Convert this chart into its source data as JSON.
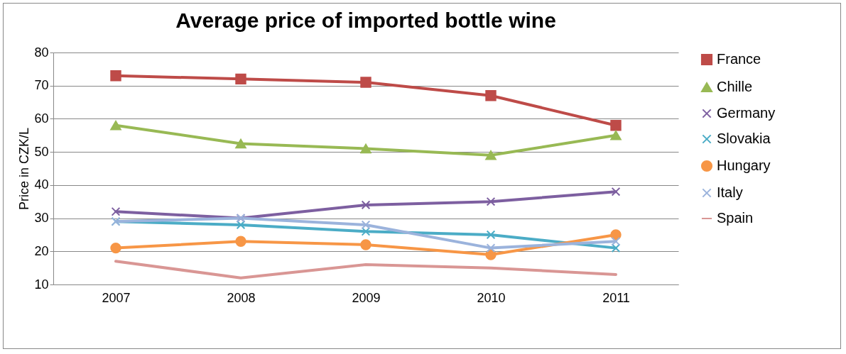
{
  "chart_data": {
    "type": "line",
    "title": "Average price of imported bottle wine",
    "ylabel": "Price in CZK/L",
    "categories": [
      "2007",
      "2008",
      "2009",
      "2010",
      "2011"
    ],
    "ylim": [
      10,
      80
    ],
    "yticks": [
      10,
      20,
      30,
      40,
      50,
      60,
      70,
      80
    ],
    "grid": "y",
    "legend": "right",
    "series": [
      {
        "name": "France",
        "color": "#be4b48",
        "marker": "square",
        "values": [
          73,
          72,
          71,
          67,
          58
        ]
      },
      {
        "name": "Chille",
        "color": "#98b954",
        "marker": "triangle",
        "values": [
          58,
          52.5,
          51,
          49,
          55
        ]
      },
      {
        "name": "Germany",
        "color": "#7d5fa0",
        "marker": "cross",
        "values": [
          32,
          30,
          34,
          35,
          38
        ]
      },
      {
        "name": "Slovakia",
        "color": "#4bacc6",
        "marker": "cross",
        "values": [
          29,
          28,
          26,
          25,
          21
        ]
      },
      {
        "name": "Hungary",
        "color": "#f79646",
        "marker": "circle",
        "values": [
          21,
          23,
          22,
          19,
          25
        ]
      },
      {
        "name": "Italy",
        "color": "#9bb3dc",
        "marker": "cross",
        "values": [
          29,
          30,
          28,
          21,
          23
        ]
      },
      {
        "name": "Spain",
        "color": "#d99694",
        "marker": "none",
        "values": [
          17,
          12,
          16,
          15,
          13
        ]
      }
    ]
  }
}
